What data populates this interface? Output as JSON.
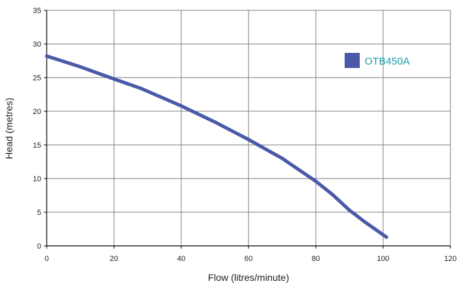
{
  "chart_data": {
    "type": "line",
    "title": "",
    "xlabel": "Flow (litres/minute)",
    "ylabel": "Head (metres)",
    "xlim": [
      0,
      120
    ],
    "ylim": [
      0,
      35
    ],
    "x_ticks": [
      0,
      20,
      40,
      60,
      80,
      100,
      120
    ],
    "y_ticks": [
      0,
      5,
      10,
      15,
      20,
      25,
      30,
      35
    ],
    "grid": true,
    "legend_placement": "top-right",
    "series": [
      {
        "name": "OTB450A",
        "color": "#4a5aa8",
        "x": [
          0,
          10,
          20,
          28,
          40,
          50,
          60,
          70,
          75,
          80,
          85,
          90,
          95,
          101
        ],
        "y": [
          28.2,
          26.6,
          24.8,
          23.4,
          20.8,
          18.4,
          15.8,
          13.0,
          11.3,
          9.6,
          7.6,
          5.3,
          3.4,
          1.3
        ]
      }
    ]
  },
  "colors": {
    "grid": "#7f7f7f",
    "axis": "#000000",
    "legend_text": "#1a9fa8"
  }
}
